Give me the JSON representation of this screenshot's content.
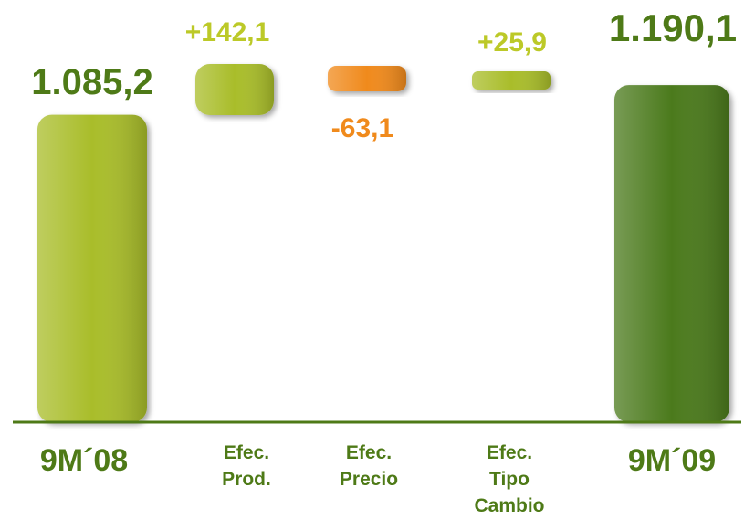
{
  "chart_data": {
    "type": "bar",
    "subtype": "waterfall",
    "categories": [
      "9M´08",
      "Efec. Prod.",
      "Efec. Precio",
      "Efec. Tipo Cambio",
      "9M´09"
    ],
    "values": [
      1085.2,
      142.1,
      -63.1,
      25.9,
      1190.1
    ],
    "labels": [
      "1.085,2",
      "+142,1",
      "-63,1",
      "+25,9",
      "1.190,1"
    ],
    "kinds": [
      "total",
      "delta",
      "delta",
      "delta",
      "total"
    ],
    "colors": [
      "#a9bd2b",
      "#a9bd2b",
      "#f08a1c",
      "#a9bd2b",
      "#4b7a1a"
    ],
    "label_colors": [
      "#4e7a17",
      "#bcc928",
      "#f08a1c",
      "#bcc928",
      "#4e7a17"
    ],
    "title": "",
    "xlabel": "",
    "ylabel": "",
    "legend": "none",
    "grid": false
  }
}
